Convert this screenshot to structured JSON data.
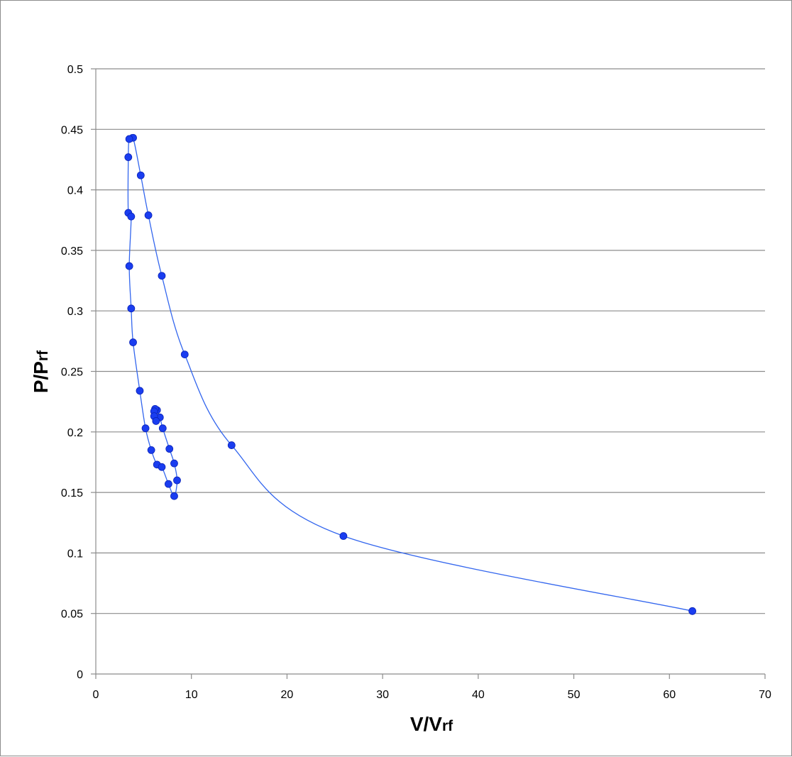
{
  "chart_data": {
    "type": "scatter",
    "title": "",
    "xlabel": {
      "main": "V/V",
      "sub": "rf"
    },
    "ylabel": {
      "main": "P/P",
      "sub": "rf"
    },
    "xlim": [
      0,
      70
    ],
    "ylim": [
      0,
      0.5
    ],
    "x_ticks": [
      "0",
      "10",
      "20",
      "30",
      "40",
      "50",
      "60",
      "70"
    ],
    "y_ticks": [
      "0",
      "0.05",
      "0.1",
      "0.15",
      "0.2",
      "0.25",
      "0.3",
      "0.35",
      "0.4",
      "0.45",
      "0.5"
    ],
    "grid": "horizontal",
    "legend": "none",
    "line_style": "smoothed",
    "colors": {
      "series": "#1a3df0",
      "line": "#3366ee",
      "grid": "#8c8c8c"
    },
    "series": [
      {
        "points": [
          [
            62.4,
            0.052
          ],
          [
            25.9,
            0.114
          ],
          [
            14.2,
            0.189
          ],
          [
            9.3,
            0.264
          ],
          [
            6.9,
            0.329
          ],
          [
            5.5,
            0.379
          ],
          [
            4.7,
            0.412
          ],
          [
            3.9,
            0.443
          ],
          [
            3.5,
            0.442
          ],
          [
            3.4,
            0.427
          ],
          [
            3.4,
            0.381
          ],
          [
            3.7,
            0.378
          ],
          [
            3.5,
            0.337
          ],
          [
            3.7,
            0.302
          ],
          [
            3.9,
            0.274
          ],
          [
            4.6,
            0.234
          ],
          [
            5.2,
            0.203
          ],
          [
            5.8,
            0.185
          ],
          [
            6.4,
            0.173
          ],
          [
            6.9,
            0.171
          ],
          [
            7.6,
            0.157
          ],
          [
            8.2,
            0.147
          ],
          [
            8.5,
            0.16
          ],
          [
            8.2,
            0.174
          ],
          [
            7.7,
            0.186
          ],
          [
            7.0,
            0.203
          ],
          [
            6.7,
            0.212
          ],
          [
            6.4,
            0.218
          ],
          [
            6.2,
            0.219
          ],
          [
            6.1,
            0.217
          ],
          [
            6.1,
            0.213
          ],
          [
            6.3,
            0.209
          ]
        ]
      }
    ]
  }
}
